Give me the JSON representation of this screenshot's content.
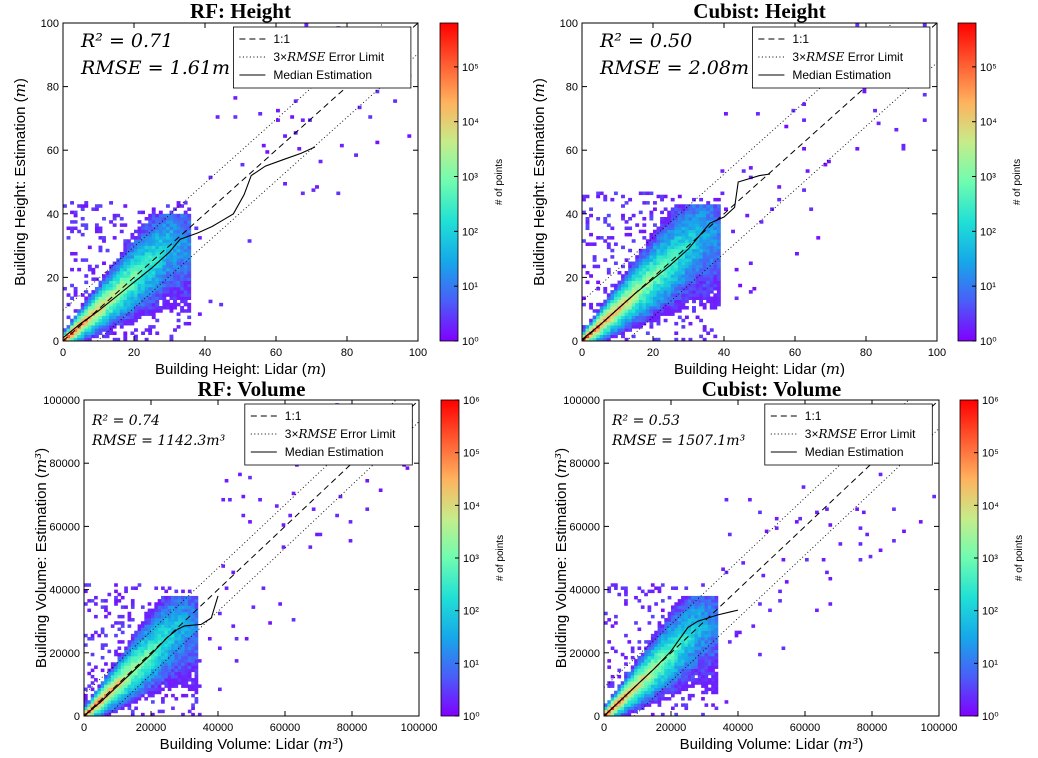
{
  "colorbar_label": "# of points",
  "colors": {
    "line": "#000000",
    "colormap": [
      "#8000ff",
      "#4a5ef8",
      "#16a8e9",
      "#20e0d5",
      "#6ffcb0",
      "#c6ec8a",
      "#ffb25e",
      "#ff5a30",
      "#ff0000"
    ]
  },
  "legend": {
    "one_to_one": "1:1",
    "error_limit_prefix": "3×",
    "error_limit_math": "RMSE",
    "error_limit_suffix": " Error Limit",
    "median": "Median Estimation"
  },
  "chart_data": [
    {
      "type": "heatmap",
      "title": "RF: Height",
      "xlabel": "Building Height: Lidar",
      "xunit": "m",
      "ylabel": "Building Height: Estimation",
      "yunit": "m",
      "xlim": [
        0,
        100
      ],
      "ylim": [
        0,
        100
      ],
      "xticks": [
        "0",
        "20",
        "40",
        "60",
        "80",
        "100"
      ],
      "yticks": [
        "0",
        "20",
        "40",
        "60",
        "80",
        "100"
      ],
      "r2": "R² = 0.71",
      "rmse": "RMSE = 1.61m",
      "rmse_value": 1.61,
      "colorbar_ticks": [
        "10⁰",
        "10¹",
        "10²",
        "10³",
        "10⁴",
        "10⁵"
      ],
      "colorbar_max_exp": 5.8,
      "seed": 3,
      "sat": 32,
      "median": [
        [
          0,
          1
        ],
        [
          5,
          5.5
        ],
        [
          10,
          9.5
        ],
        [
          15,
          14
        ],
        [
          20,
          18.5
        ],
        [
          25,
          23
        ],
        [
          30,
          28
        ],
        [
          33,
          32
        ],
        [
          38,
          34
        ],
        [
          42,
          36
        ],
        [
          45,
          38
        ],
        [
          48,
          40
        ],
        [
          51,
          46
        ],
        [
          53,
          52
        ],
        [
          57,
          55
        ],
        [
          62,
          57
        ],
        [
          67,
          59
        ],
        [
          71,
          61
        ]
      ]
    },
    {
      "type": "heatmap",
      "title": "Cubist: Height",
      "xlabel": "Building Height: Lidar",
      "xunit": "m",
      "ylabel": "Building Height: Estimation",
      "yunit": "m",
      "xlim": [
        0,
        100
      ],
      "ylim": [
        0,
        100
      ],
      "xticks": [
        "0",
        "20",
        "40",
        "60",
        "80",
        "100"
      ],
      "yticks": [
        "0",
        "20",
        "40",
        "60",
        "80",
        "100"
      ],
      "r2": "R² = 0.50",
      "rmse": "RMSE = 2.08m",
      "rmse_value": 2.08,
      "colorbar_ticks": [
        "10⁰",
        "10¹",
        "10²",
        "10³",
        "10⁴",
        "10⁵"
      ],
      "colorbar_max_exp": 5.8,
      "seed": 7,
      "sat": 35,
      "median": [
        [
          0,
          0.5
        ],
        [
          5,
          5
        ],
        [
          10,
          10
        ],
        [
          15,
          15
        ],
        [
          20,
          19.5
        ],
        [
          25,
          24
        ],
        [
          30,
          29
        ],
        [
          33,
          33
        ],
        [
          36,
          37
        ],
        [
          40,
          39
        ],
        [
          43,
          42
        ],
        [
          44,
          50
        ],
        [
          50,
          52
        ],
        [
          53,
          52.5
        ]
      ]
    },
    {
      "type": "heatmap",
      "title": "RF: Volume",
      "xlabel": "Building Volume: Lidar",
      "xunit": "m³",
      "ylabel": "Building Volume: Estimation",
      "yunit": "m³",
      "xlim": [
        0,
        100000
      ],
      "ylim": [
        0,
        100000
      ],
      "xticks": [
        "0",
        "20000",
        "40000",
        "60000",
        "80000",
        "100000"
      ],
      "yticks": [
        "0",
        "20000",
        "40000",
        "60000",
        "80000",
        "100000"
      ],
      "r2": "R² = 0.74",
      "rmse": "RMSE = 1142.3m³",
      "rmse_value": 1142.3,
      "colorbar_ticks": [
        "10⁰",
        "10¹",
        "10²",
        "10³",
        "10⁴",
        "10⁵",
        "10⁶"
      ],
      "colorbar_max_exp": 6,
      "seed": 11,
      "sat": 30000,
      "median": [
        [
          0,
          0
        ],
        [
          5000,
          4500
        ],
        [
          10000,
          9500
        ],
        [
          15000,
          14500
        ],
        [
          20000,
          19500
        ],
        [
          25000,
          25000
        ],
        [
          28000,
          27500
        ],
        [
          30000,
          28500
        ],
        [
          35000,
          29000
        ],
        [
          38000,
          31000
        ],
        [
          40000,
          38000
        ]
      ]
    },
    {
      "type": "heatmap",
      "title": "Cubist: Volume",
      "xlabel": "Building Volume: Lidar",
      "xunit": "m³",
      "ylabel": "Building Volume: Estimation",
      "yunit": "m³",
      "xlim": [
        0,
        100000
      ],
      "ylim": [
        0,
        100000
      ],
      "xticks": [
        "0",
        "20000",
        "40000",
        "60000",
        "80000",
        "100000"
      ],
      "yticks": [
        "0",
        "20000",
        "40000",
        "60000",
        "80000",
        "100000"
      ],
      "r2": "R² = 0.53",
      "rmse": "RMSE = 1507.1m³",
      "rmse_value": 1507.1,
      "colorbar_ticks": [
        "10⁰",
        "10¹",
        "10²",
        "10³",
        "10⁴",
        "10⁵",
        "10⁶"
      ],
      "colorbar_max_exp": 6,
      "seed": 19,
      "sat": 30000,
      "median": [
        [
          0,
          0
        ],
        [
          5000,
          5000
        ],
        [
          10000,
          10000
        ],
        [
          15000,
          15000
        ],
        [
          20000,
          20500
        ],
        [
          25000,
          28000
        ],
        [
          28000,
          30000
        ],
        [
          31000,
          31000
        ],
        [
          34000,
          32000
        ],
        [
          38000,
          33000
        ],
        [
          40000,
          33500
        ]
      ]
    }
  ]
}
